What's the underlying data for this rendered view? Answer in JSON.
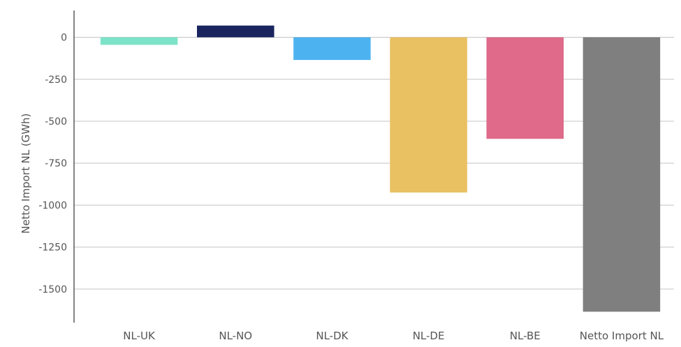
{
  "chart_data": {
    "type": "bar",
    "ylabel": "Netto Import NL (GWh)",
    "categories": [
      "NL-UK",
      "NL-NO",
      "NL-DK",
      "NL-DE",
      "NL-BE",
      "Netto Import NL"
    ],
    "values": [
      -45,
      70,
      -135,
      -925,
      -605,
      -1635
    ],
    "colors": [
      "#7de3c8",
      "#1a2560",
      "#4db3f0",
      "#e9c062",
      "#df6a8a",
      "#7f7f7f"
    ],
    "yticks": [
      0,
      -250,
      -500,
      -750,
      -1000,
      -1250,
      -1500
    ],
    "ytick_labels": [
      "0",
      "-250",
      "-500",
      "-750",
      "-1000",
      "-1250",
      "-1500"
    ],
    "ylim": [
      -1700,
      160
    ],
    "grid": "horizontal"
  }
}
